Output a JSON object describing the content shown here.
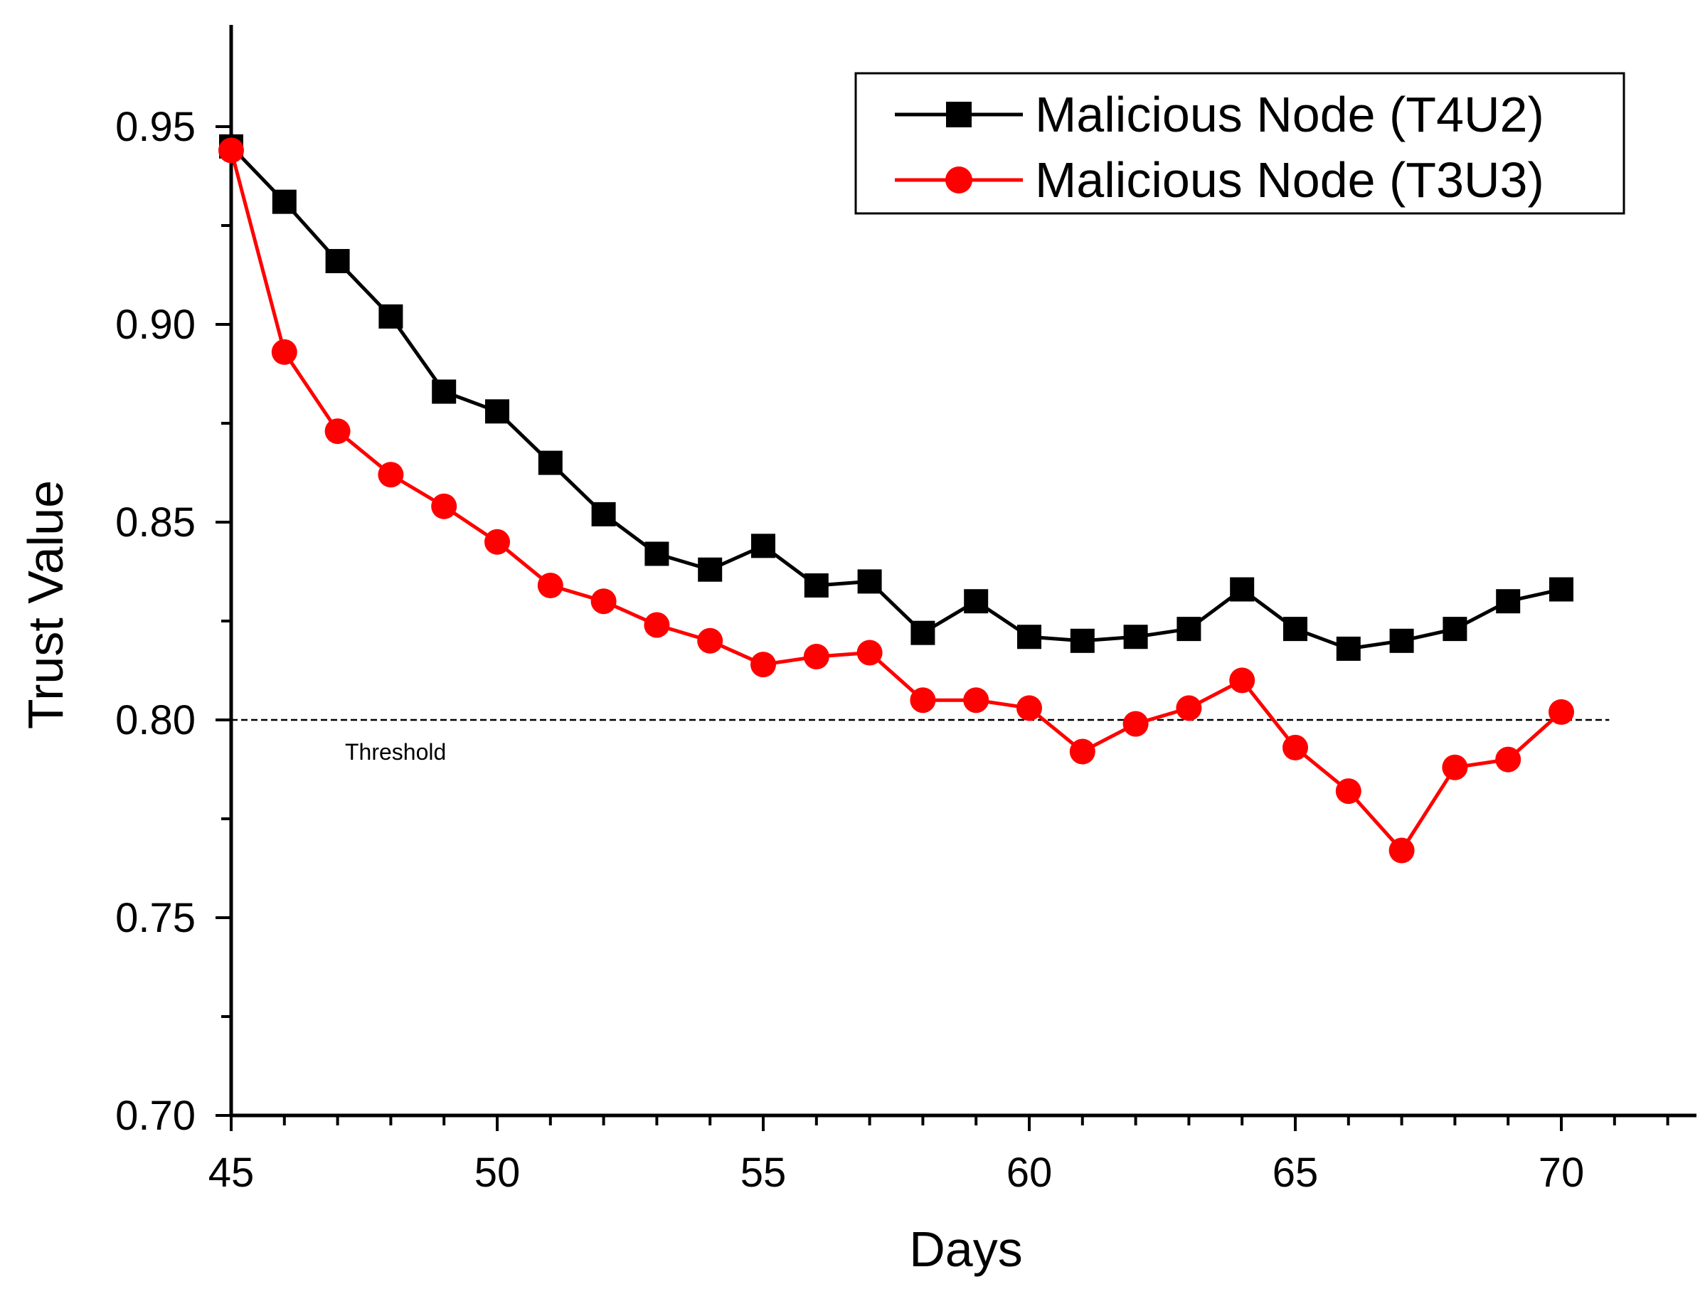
{
  "chart_data": {
    "type": "line",
    "title": "",
    "xlabel": "Days",
    "ylabel": "Trust Value",
    "xlim": [
      45,
      72.5
    ],
    "ylim": [
      0.7,
      0.975
    ],
    "xticks": [
      45,
      50,
      55,
      60,
      65,
      70
    ],
    "xtick_labels": [
      "45",
      "50",
      "55",
      "60",
      "65",
      "70"
    ],
    "yticks": [
      0.7,
      0.75,
      0.8,
      0.85,
      0.9,
      0.95
    ],
    "ytick_labels": [
      "0.70",
      "0.75",
      "0.80",
      "0.85",
      "0.90",
      "0.95"
    ],
    "grid": false,
    "legend_position": "top-right",
    "x": [
      45,
      46,
      47,
      48,
      49,
      50,
      51,
      52,
      53,
      54,
      55,
      56,
      57,
      58,
      59,
      60,
      61,
      62,
      63,
      64,
      65,
      66,
      67,
      68,
      69,
      70
    ],
    "series": [
      {
        "name": "Malicious Node (T4U2)",
        "color": "#000000",
        "marker": "square",
        "values": [
          0.945,
          0.931,
          0.916,
          0.902,
          0.883,
          0.878,
          0.865,
          0.852,
          0.842,
          0.838,
          0.844,
          0.834,
          0.835,
          0.822,
          0.83,
          0.821,
          0.82,
          0.821,
          0.823,
          0.833,
          0.823,
          0.818,
          0.82,
          0.823,
          0.83,
          0.833
        ]
      },
      {
        "name": "Malicious Node (T3U3)",
        "color": "#ff0000",
        "marker": "circle",
        "values": [
          0.944,
          0.893,
          0.873,
          0.862,
          0.854,
          0.845,
          0.834,
          0.83,
          0.824,
          0.82,
          0.814,
          0.816,
          0.817,
          0.805,
          0.805,
          0.803,
          0.792,
          0.799,
          0.803,
          0.81,
          0.793,
          0.782,
          0.767,
          0.788,
          0.79,
          0.802
        ]
      }
    ],
    "threshold": {
      "value": 0.8,
      "label": "Threshold",
      "x_range": [
        45,
        70.9
      ]
    }
  }
}
